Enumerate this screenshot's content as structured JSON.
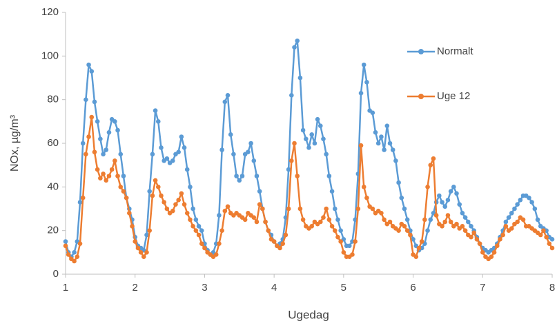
{
  "chart_data": {
    "type": "line",
    "x_label": "Ugedag",
    "y_label": "NOx, µg/m³",
    "xlim": [
      1,
      8
    ],
    "xticks": [
      1,
      2,
      3,
      4,
      5,
      6,
      7,
      8
    ],
    "ylim": [
      0,
      120
    ],
    "yticks": [
      0,
      20,
      40,
      60,
      80,
      100,
      120
    ],
    "grid": false,
    "legend": "upper right",
    "x": [
      1,
      1.0417,
      1.0833,
      1.125,
      1.1667,
      1.2083,
      1.25,
      1.2917,
      1.3333,
      1.375,
      1.4167,
      1.4583,
      1.5,
      1.5417,
      1.5833,
      1.625,
      1.6667,
      1.7083,
      1.75,
      1.7917,
      1.8333,
      1.875,
      1.9167,
      1.9583,
      2,
      2.0417,
      2.0833,
      2.125,
      2.1667,
      2.2083,
      2.25,
      2.2917,
      2.3333,
      2.375,
      2.4167,
      2.4583,
      2.5,
      2.5417,
      2.5833,
      2.625,
      2.6667,
      2.7083,
      2.75,
      2.7917,
      2.8333,
      2.875,
      2.9167,
      2.9583,
      3,
      3.0417,
      3.0833,
      3.125,
      3.1667,
      3.2083,
      3.25,
      3.2917,
      3.3333,
      3.375,
      3.4167,
      3.4583,
      3.5,
      3.5417,
      3.5833,
      3.625,
      3.6667,
      3.7083,
      3.75,
      3.7917,
      3.8333,
      3.875,
      3.9167,
      3.9583,
      4,
      4.0417,
      4.0833,
      4.125,
      4.1667,
      4.2083,
      4.25,
      4.2917,
      4.3333,
      4.375,
      4.4167,
      4.4583,
      4.5,
      4.5417,
      4.5833,
      4.625,
      4.6667,
      4.7083,
      4.75,
      4.7917,
      4.8333,
      4.875,
      4.9167,
      4.9583,
      5,
      5.0417,
      5.0833,
      5.125,
      5.1667,
      5.2083,
      5.25,
      5.2917,
      5.3333,
      5.375,
      5.4167,
      5.4583,
      5.5,
      5.5417,
      5.5833,
      5.625,
      5.6667,
      5.7083,
      5.75,
      5.7917,
      5.8333,
      5.875,
      5.9167,
      5.9583,
      6,
      6.0417,
      6.0833,
      6.125,
      6.1667,
      6.2083,
      6.25,
      6.2917,
      6.3333,
      6.375,
      6.4167,
      6.4583,
      6.5,
      6.5417,
      6.5833,
      6.625,
      6.6667,
      6.7083,
      6.75,
      6.7917,
      6.8333,
      6.875,
      6.9167,
      6.9583,
      7,
      7.0417,
      7.0833,
      7.125,
      7.1667,
      7.2083,
      7.25,
      7.2917,
      7.3333,
      7.375,
      7.4167,
      7.4583,
      7.5,
      7.5417,
      7.5833,
      7.625,
      7.6667,
      7.7083,
      7.75,
      7.7917,
      7.8333,
      7.875,
      7.9167,
      7.9583,
      8
    ],
    "series": [
      {
        "name": "Normalt",
        "color": "#5b9bd5",
        "values": [
          15,
          10,
          8,
          10,
          15,
          33,
          60,
          80,
          96,
          93,
          79,
          70,
          62,
          55,
          57,
          65,
          71,
          70,
          66,
          55,
          45,
          35,
          30,
          25,
          17,
          13,
          12,
          11,
          18,
          38,
          55,
          75,
          70,
          58,
          52,
          53,
          51,
          52,
          55,
          56,
          63,
          58,
          48,
          40,
          30,
          25,
          22,
          20,
          14,
          11,
          9,
          10,
          14,
          27,
          57,
          79,
          82,
          64,
          55,
          45,
          43,
          45,
          55,
          56,
          60,
          52,
          45,
          38,
          30,
          24,
          20,
          18,
          15,
          13,
          14,
          16,
          26,
          48,
          82,
          104,
          107,
          90,
          66,
          62,
          58,
          64,
          60,
          71,
          68,
          62,
          55,
          45,
          38,
          30,
          25,
          20,
          16,
          13,
          13,
          15,
          25,
          46,
          83,
          96,
          88,
          75,
          74,
          65,
          60,
          63,
          57,
          68,
          60,
          57,
          52,
          42,
          35,
          30,
          25,
          20,
          16,
          13,
          11,
          12,
          14,
          20,
          25,
          28,
          33,
          36,
          33,
          31,
          34,
          38,
          40,
          37,
          32,
          28,
          26,
          24,
          22,
          20,
          17,
          14,
          12,
          11,
          10,
          11,
          12,
          14,
          17,
          20,
          24,
          26,
          28,
          30,
          32,
          34,
          36,
          36,
          35,
          33,
          30,
          25,
          22,
          21,
          20,
          17,
          16
        ]
      },
      {
        "name": "Uge 12",
        "color": "#ed7d31",
        "values": [
          13,
          9,
          7,
          6,
          8,
          14,
          35,
          55,
          63,
          72,
          56,
          48,
          44,
          46,
          43,
          45,
          48,
          52,
          45,
          40,
          38,
          35,
          28,
          22,
          15,
          12,
          10,
          8,
          10,
          20,
          36,
          43,
          40,
          36,
          33,
          30,
          28,
          29,
          32,
          34,
          37,
          32,
          28,
          25,
          22,
          20,
          18,
          14,
          12,
          10,
          9,
          8,
          9,
          14,
          20,
          29,
          31,
          28,
          27,
          28,
          27,
          26,
          25,
          28,
          27,
          26,
          24,
          32,
          30,
          24,
          20,
          16,
          15,
          13,
          12,
          14,
          18,
          30,
          52,
          60,
          45,
          30,
          25,
          22,
          21,
          22,
          24,
          23,
          24,
          26,
          30,
          25,
          22,
          20,
          17,
          15,
          10,
          8,
          8,
          9,
          15,
          30,
          59,
          40,
          35,
          31,
          30,
          28,
          29,
          28,
          25,
          23,
          24,
          22,
          21,
          20,
          23,
          22,
          20,
          18,
          9,
          8,
          12,
          15,
          25,
          40,
          50,
          53,
          27,
          23,
          22,
          24,
          27,
          24,
          22,
          23,
          21,
          22,
          20,
          18,
          17,
          19,
          16,
          14,
          10,
          8,
          7,
          8,
          10,
          13,
          16,
          18,
          22,
          20,
          21,
          23,
          24,
          26,
          25,
          22,
          22,
          21,
          20,
          19,
          18,
          20,
          17,
          14,
          12
        ]
      }
    ]
  }
}
